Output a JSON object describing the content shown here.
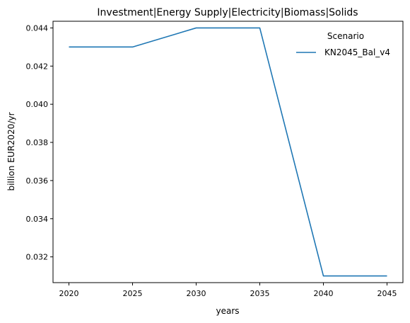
{
  "chart_data": {
    "type": "line",
    "title": "Investment|Energy Supply|Electricity|Biomass|Solids",
    "xlabel": "years",
    "ylabel": "billion EUR2020/yr",
    "x": [
      2020,
      2025,
      2030,
      2035,
      2040,
      2045
    ],
    "series": [
      {
        "name": "KN2045_Bal_v4",
        "values": [
          0.043,
          0.043,
          0.044,
          0.044,
          0.031,
          0.031
        ],
        "color": "#1f77b4"
      }
    ],
    "xlim": [
      2018.75,
      2046.25
    ],
    "ylim": [
      0.03065,
      0.04435
    ],
    "xticks": [
      2020,
      2025,
      2030,
      2035,
      2040,
      2045
    ],
    "yticks": [
      0.032,
      0.034,
      0.036,
      0.038,
      0.04,
      0.042,
      0.044
    ],
    "ytick_labels": [
      "0.032",
      "0.034",
      "0.036",
      "0.038",
      "0.040",
      "0.042",
      "0.044"
    ],
    "grid": false,
    "legend": {
      "title": "Scenario",
      "placement": "upper right"
    }
  }
}
